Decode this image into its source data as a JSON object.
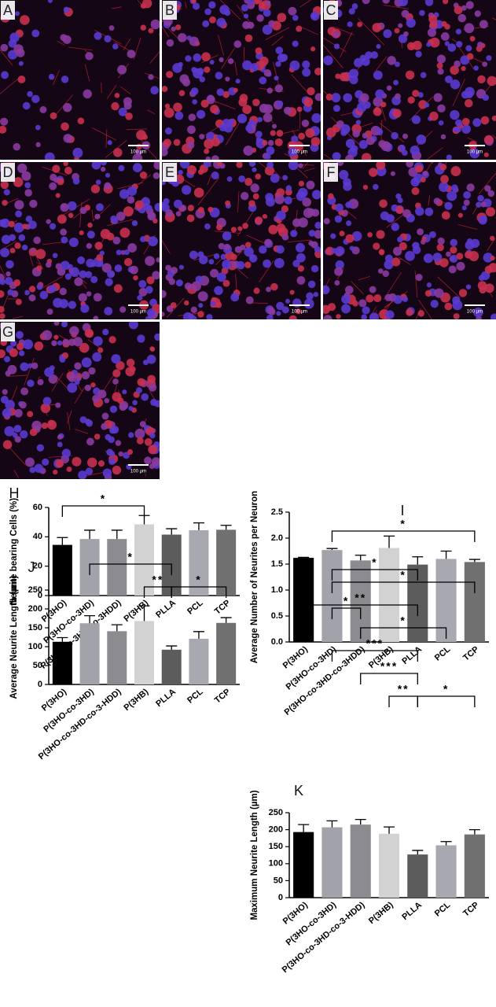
{
  "panels": [
    {
      "label": "A",
      "scale": "100 μm"
    },
    {
      "label": "B",
      "scale": "100 μm"
    },
    {
      "label": "C",
      "scale": "100 μm"
    },
    {
      "label": "D",
      "scale": "100 μm"
    },
    {
      "label": "E",
      "scale": "100 μm"
    },
    {
      "label": "F",
      "scale": "100 μm"
    },
    {
      "label": "G",
      "scale": "100 μm"
    }
  ],
  "chart_data": [
    {
      "type": "bar",
      "label": "H",
      "y_label": "Neurite bearing Cells (%)",
      "categories": [
        "P(3HO)",
        "P(3HO-co-3HD)",
        "P(3HO-co-3HD-co-3HDD)",
        "P(3HB)",
        "PLLA",
        "PCL",
        "TCP"
      ],
      "values": [
        34.5,
        38.5,
        38.5,
        48.5,
        41.5,
        44.5,
        44.8
      ],
      "errors": [
        5,
        6,
        6,
        6,
        4,
        5,
        3
      ],
      "colors": [
        "#000000",
        "#a2a2aa",
        "#8c8c90",
        "#d2d2d2",
        "#5c5c5c",
        "#a8a8b0",
        "#707070"
      ],
      "ylim": [
        0,
        60
      ],
      "yticks": [
        0,
        20,
        40,
        60
      ],
      "significance": [
        {
          "from": 0,
          "to": 3,
          "label": "*"
        }
      ]
    },
    {
      "type": "bar",
      "label": "I",
      "y_label": "Average Number of Neurites per Neuron",
      "categories": [
        "P(3HO)",
        "P(3HO-co-3HD)",
        "P(3HO-co-3HD-co-3HDD)",
        "P(3HB)",
        "PLLA",
        "PCL",
        "TCP"
      ],
      "values": [
        1.62,
        1.77,
        1.57,
        1.81,
        1.49,
        1.6,
        1.54
      ],
      "errors": [
        0.01,
        0.03,
        0.1,
        0.23,
        0.15,
        0.15,
        0.05
      ],
      "colors": [
        "#000000",
        "#a2a2aa",
        "#8c8c90",
        "#d2d2d2",
        "#5c5c5c",
        "#a8a8b0",
        "#707070"
      ],
      "ylim": [
        0,
        2.5
      ],
      "yticks": [
        {
          "value": 0,
          "label": "0.0"
        },
        0.5,
        {
          "value": 1,
          "label": "1.0"
        },
        1.5,
        {
          "value": 2,
          "label": "2.0"
        },
        2.5
      ],
      "significance": [
        {
          "from": 1,
          "to": 2,
          "label": "*"
        },
        {
          "from": 1,
          "to": 4,
          "label": "*"
        },
        {
          "from": 1,
          "to": 6,
          "label": "*"
        }
      ]
    },
    {
      "type": "bar",
      "label": "J",
      "y_label": "Average Neurite Length (µm)",
      "categories": [
        "P(3HO)",
        "P(3HO-co-3HD)",
        "P(3HO-co-3HD-co-3-HDD)",
        "P(3HB)",
        "PLLA",
        "PCL",
        "TCP"
      ],
      "values": [
        113,
        162,
        141,
        168,
        92,
        121,
        163
      ],
      "errors": [
        11,
        20,
        17,
        40,
        10,
        19,
        14
      ],
      "colors": [
        "#000000",
        "#a2a2aa",
        "#8c8c90",
        "#d2d2d2",
        "#5c5c5c",
        "#a8a8b0",
        "#707070"
      ],
      "ylim": [
        0,
        250
      ],
      "yticks": [
        0,
        50,
        100,
        150,
        200,
        250
      ],
      "significance": [
        {
          "from": 3,
          "to": 4,
          "label": "**"
        },
        {
          "from": 4,
          "to": 6,
          "label": "*"
        },
        {
          "from": 1,
          "to": 4,
          "label": "*"
        }
      ]
    },
    {
      "type": "bar",
      "label": "K",
      "y_label": "Maximum Neurite Length (µm)",
      "categories": [
        "P(3HO)",
        "P(3HO-co-3HD)",
        "P(3HO-co-3HD-co-3-HDD)",
        "P(3HB)",
        "PLLA",
        "PCL",
        "TCP"
      ],
      "values": [
        193,
        207,
        215,
        188,
        127,
        154,
        186
      ],
      "errors": [
        22,
        19,
        15,
        20,
        12,
        11,
        14
      ],
      "colors": [
        "#000000",
        "#a2a2aa",
        "#8c8c90",
        "#d2d2d2",
        "#5c5c5c",
        "#a8a8b0",
        "#707070"
      ],
      "ylim": [
        0,
        250
      ],
      "yticks": [
        0,
        50,
        100,
        150,
        200,
        250
      ],
      "significance": [
        {
          "from": 4,
          "to": 6,
          "label": "*"
        },
        {
          "from": 3,
          "to": 4,
          "label": "**"
        },
        {
          "from": 2,
          "to": 4,
          "label": "***"
        },
        {
          "from": 1,
          "to": 4,
          "label": "***"
        },
        {
          "from": 2,
          "to": 5,
          "label": "*"
        },
        {
          "from": 0,
          "to": 4,
          "label": "**"
        },
        {
          "from": 1,
          "to": 6,
          "label": "*"
        }
      ]
    }
  ]
}
